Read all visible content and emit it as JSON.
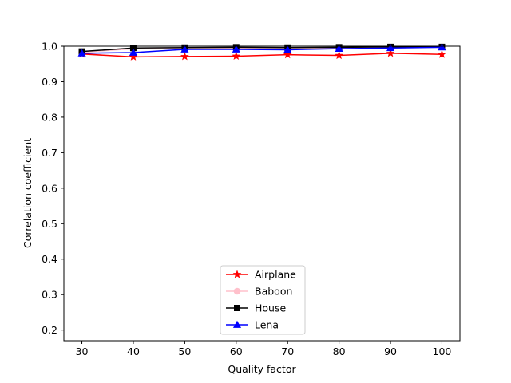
{
  "chart_data": {
    "type": "line",
    "xlabel": "Quality factor",
    "ylabel": "Correlation coefficient",
    "xlim": [
      26.5,
      103.5
    ],
    "ylim": [
      0.17,
      1.0
    ],
    "xticks": [
      30,
      40,
      50,
      60,
      70,
      80,
      90,
      100
    ],
    "yticks": [
      0.2,
      0.3,
      0.4,
      0.5,
      0.6,
      0.7,
      0.8,
      0.9,
      1.0
    ],
    "x": [
      30,
      40,
      50,
      60,
      70,
      80,
      90,
      100
    ],
    "grid": false,
    "legend_position": "bottom-center",
    "series": [
      {
        "name": "Airplane",
        "color": "#ff0000",
        "marker": "star",
        "values": [
          0.978,
          0.97,
          0.971,
          0.972,
          0.976,
          0.974,
          0.98,
          0.977
        ]
      },
      {
        "name": "Baboon",
        "color": "#ffc0cb",
        "marker": "circle",
        "values": [
          0.983,
          0.993,
          0.993,
          0.994,
          0.993,
          0.995,
          0.997,
          0.998
        ]
      },
      {
        "name": "House",
        "color": "#000000",
        "marker": "square",
        "values": [
          0.985,
          0.995,
          0.996,
          0.997,
          0.996,
          0.997,
          0.998,
          0.998
        ]
      },
      {
        "name": "Lena",
        "color": "#0000ff",
        "marker": "triangle",
        "values": [
          0.98,
          0.982,
          0.991,
          0.991,
          0.99,
          0.993,
          0.995,
          0.997
        ]
      }
    ]
  }
}
